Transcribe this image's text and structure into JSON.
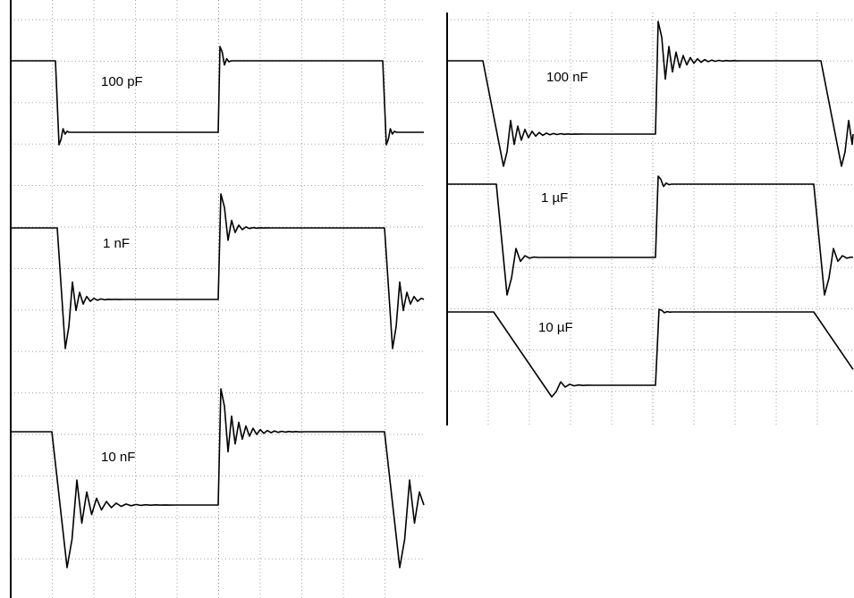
{
  "chart_data": [
    {
      "type": "line",
      "title": "",
      "xlabel": "",
      "ylabel": "",
      "grid": true,
      "x_divisions": 10,
      "y_divisions": 8,
      "waveform": "square-wave step response, two periods shown",
      "series": [
        {
          "label": "100 pF",
          "ringing_cycles": 1,
          "ring_decay": "very fast",
          "overshoot_div": 0.45
        },
        {
          "label": "1 nF",
          "ringing_cycles": 4,
          "ring_decay": "fast",
          "overshoot_div": 1.4
        },
        {
          "label": "10 nF",
          "ringing_cycles": 8,
          "ring_decay": "moderate",
          "overshoot_div": 1.8
        }
      ]
    },
    {
      "type": "line",
      "title": "",
      "xlabel": "",
      "ylabel": "",
      "grid": true,
      "x_divisions": 10,
      "y_divisions": 8,
      "waveform": "square-wave step response, two periods shown",
      "series": [
        {
          "label": "100 nF",
          "ringing_cycles": 9,
          "ring_decay": "slow, damped",
          "slew_limited": true
        },
        {
          "label": "1 µF",
          "ringing_cycles": 1,
          "ring_decay": "fast",
          "overshoot_div": 1.0
        },
        {
          "label": "10 µF",
          "ringing_cycles": 0,
          "slew_limited": true
        }
      ]
    }
  ]
}
